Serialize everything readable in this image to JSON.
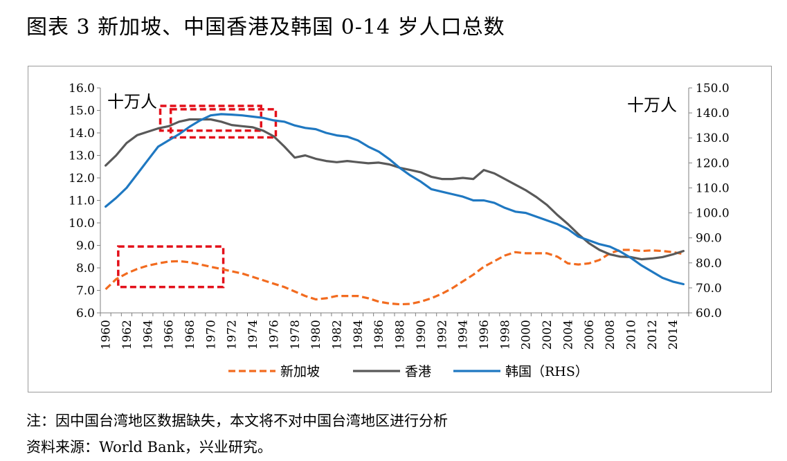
{
  "figure_title": "图表 3 新加坡、中国香港及韩国 0-14 岁人口总数",
  "note": "注：因中国台湾地区数据缺失，本文将不对中国台湾地区进行分析",
  "source": "资料来源：World Bank，兴业研究。",
  "colors": {
    "singapore": "#f26b1f",
    "hongkong": "#595959",
    "korea": "#1f78c1",
    "highlight": "#e3101a",
    "frame": "#9a9a9a"
  },
  "chart_data": {
    "type": "line",
    "left_unit": "十万人",
    "right_unit": "十万人",
    "x": [
      1960,
      1961,
      1962,
      1963,
      1964,
      1965,
      1966,
      1967,
      1968,
      1969,
      1970,
      1971,
      1972,
      1973,
      1974,
      1975,
      1976,
      1977,
      1978,
      1979,
      1980,
      1981,
      1982,
      1983,
      1984,
      1985,
      1986,
      1987,
      1988,
      1989,
      1990,
      1991,
      1992,
      1993,
      1994,
      1995,
      1996,
      1997,
      1998,
      1999,
      2000,
      2001,
      2002,
      2003,
      2004,
      2005,
      2006,
      2007,
      2008,
      2009,
      2010,
      2011,
      2012,
      2013,
      2014,
      2015
    ],
    "x_tick_labels": [
      "1960",
      "1962",
      "1964",
      "1966",
      "1968",
      "1970",
      "1972",
      "1974",
      "1976",
      "1978",
      "1980",
      "1982",
      "1984",
      "1986",
      "1988",
      "1990",
      "1992",
      "1994",
      "1996",
      "1998",
      "2000",
      "2002",
      "2004",
      "2006",
      "2008",
      "2010",
      "2012",
      "2014"
    ],
    "y_left": {
      "min": 6.0,
      "max": 16.0,
      "ticks": [
        "6.0",
        "7.0",
        "8.0",
        "9.0",
        "10.0",
        "11.0",
        "12.0",
        "13.0",
        "14.0",
        "15.0",
        "16.0"
      ]
    },
    "y_right": {
      "min": 60.0,
      "max": 150.0,
      "ticks": [
        "60.0",
        "70.0",
        "80.0",
        "90.0",
        "100.0",
        "110.0",
        "120.0",
        "130.0",
        "140.0",
        "150.0"
      ]
    },
    "series": [
      {
        "name": "新加坡",
        "axis": "left",
        "style": "dashed",
        "values": [
          7.05,
          7.5,
          7.75,
          7.95,
          8.1,
          8.2,
          8.28,
          8.3,
          8.25,
          8.15,
          8.05,
          7.95,
          7.85,
          7.75,
          7.6,
          7.45,
          7.3,
          7.15,
          6.95,
          6.75,
          6.6,
          6.65,
          6.75,
          6.75,
          6.75,
          6.65,
          6.5,
          6.42,
          6.38,
          6.4,
          6.5,
          6.65,
          6.85,
          7.1,
          7.4,
          7.7,
          8.05,
          8.3,
          8.55,
          8.7,
          8.65,
          8.65,
          8.65,
          8.5,
          8.2,
          8.15,
          8.2,
          8.35,
          8.65,
          8.8,
          8.8,
          8.75,
          8.78,
          8.75,
          8.7,
          8.62
        ]
      },
      {
        "name": "香港",
        "axis": "left",
        "style": "solid",
        "values": [
          12.55,
          13.0,
          13.55,
          13.9,
          14.05,
          14.2,
          14.3,
          14.5,
          14.6,
          14.6,
          14.6,
          14.5,
          14.35,
          14.3,
          14.25,
          14.1,
          13.85,
          13.4,
          12.9,
          13.0,
          12.85,
          12.75,
          12.7,
          12.75,
          12.7,
          12.65,
          12.68,
          12.6,
          12.45,
          12.35,
          12.25,
          12.05,
          11.95,
          11.95,
          12.0,
          11.95,
          12.35,
          12.2,
          11.95,
          11.7,
          11.45,
          11.15,
          10.8,
          10.35,
          9.95,
          9.5,
          9.1,
          8.8,
          8.6,
          8.5,
          8.48,
          8.38,
          8.42,
          8.48,
          8.6,
          8.75
        ]
      },
      {
        "name": "韩国（RHS）",
        "axis": "right",
        "style": "solid",
        "values": [
          102.5,
          106.0,
          110.0,
          115.5,
          121.0,
          126.5,
          129.0,
          131.5,
          134.5,
          137.0,
          139.0,
          139.5,
          139.3,
          139.0,
          138.5,
          138.0,
          137.0,
          136.5,
          135.0,
          134.0,
          133.5,
          132.0,
          131.0,
          130.5,
          129.0,
          126.5,
          124.5,
          121.5,
          118.0,
          115.0,
          112.5,
          109.5,
          108.5,
          107.5,
          106.5,
          105.0,
          105.0,
          104.0,
          102.0,
          100.5,
          100.0,
          98.5,
          97.0,
          95.5,
          93.5,
          90.5,
          89.0,
          87.5,
          86.5,
          84.5,
          82.0,
          79.0,
          76.5,
          74.0,
          72.5,
          71.5
        ]
      }
    ],
    "highlights": [
      {
        "axis": "left",
        "x0": 1965.2,
        "x1": 1974.8,
        "y0": 14.1,
        "y1": 15.2
      },
      {
        "axis": "left",
        "x0": 1966.2,
        "x1": 1976.2,
        "y0": 13.8,
        "y1": 15.05
      },
      {
        "axis": "left",
        "x0": 1961.2,
        "x1": 1971.2,
        "y0": 7.15,
        "y1": 8.95
      }
    ]
  }
}
